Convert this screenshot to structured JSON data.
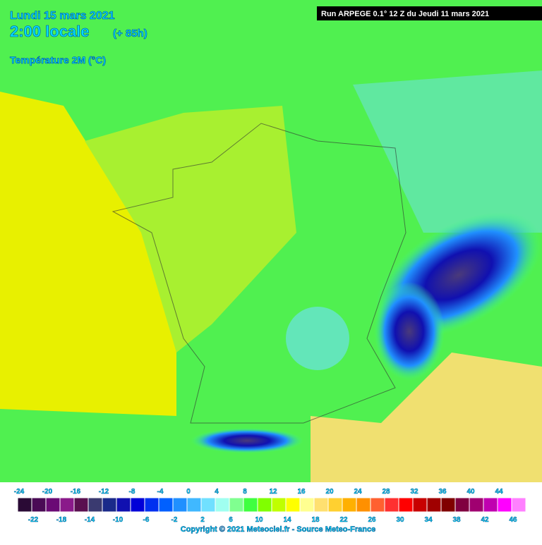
{
  "header": {
    "date": "Lundi 15 mars 2021",
    "time": "2:00 locale",
    "lead": "(+ 85h)",
    "variable": "Température 2M (°C)"
  },
  "run": "Run ARPEGE 0.1° 12 Z du Jeudi 11 mars 2021",
  "legend": {
    "ticks": [
      -24,
      -22,
      -20,
      -18,
      -16,
      -14,
      -12,
      -10,
      -8,
      -6,
      -4,
      -2,
      0,
      2,
      4,
      6,
      8,
      10,
      12,
      14,
      16,
      18,
      20,
      22,
      24,
      26,
      28,
      30,
      32,
      34,
      36,
      38,
      40,
      42,
      44,
      46
    ],
    "colors": [
      "#2a0a35",
      "#4a0a55",
      "#6a0a75",
      "#8a1a8a",
      "#5a1050",
      "#3a3a70",
      "#1a2a8a",
      "#1010b0",
      "#0000d8",
      "#0030f0",
      "#0060ff",
      "#2090ff",
      "#40b8ff",
      "#70e0ff",
      "#a0fff0",
      "#80ff90",
      "#40ff40",
      "#80ff00",
      "#c0ff00",
      "#ffff00",
      "#ffff90",
      "#ffe070",
      "#ffd030",
      "#ffb000",
      "#ff9000",
      "#ff6030",
      "#ff3030",
      "#ff0000",
      "#c80000",
      "#a00000",
      "#800000",
      "#800040",
      "#a00070",
      "#c000b0",
      "#ff00ff",
      "#ff80ff"
    ]
  },
  "copyright": "Copyright © 2021 Meteociel.fr - Source Meteo-France"
}
